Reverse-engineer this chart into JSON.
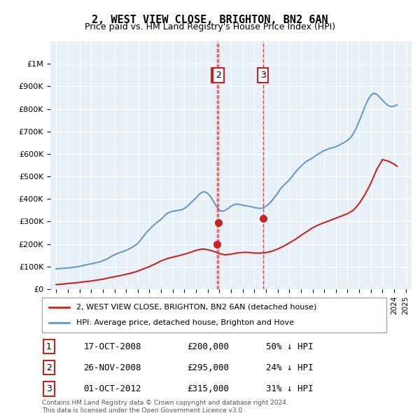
{
  "title": "2, WEST VIEW CLOSE, BRIGHTON, BN2 6AN",
  "subtitle": "Price paid vs. HM Land Registry's House Price Index (HPI)",
  "hpi_years": [
    1995.0,
    1995.25,
    1995.5,
    1995.75,
    1996.0,
    1996.25,
    1996.5,
    1996.75,
    1997.0,
    1997.25,
    1997.5,
    1997.75,
    1998.0,
    1998.25,
    1998.5,
    1998.75,
    1999.0,
    1999.25,
    1999.5,
    1999.75,
    2000.0,
    2000.25,
    2000.5,
    2000.75,
    2001.0,
    2001.25,
    2001.5,
    2001.75,
    2002.0,
    2002.25,
    2002.5,
    2002.75,
    2003.0,
    2003.25,
    2003.5,
    2003.75,
    2004.0,
    2004.25,
    2004.5,
    2004.75,
    2005.0,
    2005.25,
    2005.5,
    2005.75,
    2006.0,
    2006.25,
    2006.5,
    2006.75,
    2007.0,
    2007.25,
    2007.5,
    2007.75,
    2008.0,
    2008.25,
    2008.5,
    2008.75,
    2009.0,
    2009.25,
    2009.5,
    2009.75,
    2010.0,
    2010.25,
    2010.5,
    2010.75,
    2011.0,
    2011.25,
    2011.5,
    2011.75,
    2012.0,
    2012.25,
    2012.5,
    2012.75,
    2013.0,
    2013.25,
    2013.5,
    2013.75,
    2014.0,
    2014.25,
    2014.5,
    2014.75,
    2015.0,
    2015.25,
    2015.5,
    2015.75,
    2016.0,
    2016.25,
    2016.5,
    2016.75,
    2017.0,
    2017.25,
    2017.5,
    2017.75,
    2018.0,
    2018.25,
    2018.5,
    2018.75,
    2019.0,
    2019.25,
    2019.5,
    2019.75,
    2020.0,
    2020.25,
    2020.5,
    2020.75,
    2021.0,
    2021.25,
    2021.5,
    2021.75,
    2022.0,
    2022.25,
    2022.5,
    2022.75,
    2023.0,
    2023.25,
    2023.5,
    2023.75,
    2024.0,
    2024.25
  ],
  "hpi_values": [
    90000,
    91000,
    92000,
    93000,
    94000,
    95000,
    97000,
    99000,
    101000,
    104000,
    107000,
    110000,
    112000,
    115000,
    118000,
    121000,
    126000,
    131000,
    138000,
    146000,
    152000,
    158000,
    163000,
    167000,
    172000,
    178000,
    185000,
    193000,
    203000,
    218000,
    235000,
    252000,
    265000,
    278000,
    290000,
    300000,
    310000,
    323000,
    335000,
    342000,
    345000,
    348000,
    350000,
    352000,
    358000,
    368000,
    380000,
    393000,
    405000,
    420000,
    430000,
    432000,
    425000,
    410000,
    390000,
    368000,
    350000,
    345000,
    350000,
    358000,
    368000,
    375000,
    378000,
    376000,
    372000,
    370000,
    368000,
    366000,
    362000,
    360000,
    358000,
    360000,
    368000,
    378000,
    392000,
    408000,
    425000,
    445000,
    460000,
    472000,
    485000,
    500000,
    518000,
    532000,
    545000,
    558000,
    568000,
    575000,
    582000,
    592000,
    600000,
    608000,
    615000,
    620000,
    625000,
    628000,
    632000,
    638000,
    645000,
    652000,
    660000,
    672000,
    690000,
    715000,
    745000,
    778000,
    810000,
    840000,
    860000,
    870000,
    865000,
    852000,
    838000,
    825000,
    815000,
    810000,
    812000,
    818000
  ],
  "price_years": [
    1995.0,
    1995.5,
    1996.0,
    1996.5,
    1997.0,
    1997.5,
    1998.0,
    1998.5,
    1999.0,
    1999.5,
    2000.0,
    2000.5,
    2001.0,
    2001.5,
    2002.0,
    2002.5,
    2003.0,
    2003.5,
    2004.0,
    2004.5,
    2005.0,
    2005.5,
    2006.0,
    2006.5,
    2007.0,
    2007.5,
    2008.0,
    2008.5,
    2009.0,
    2009.5,
    2010.0,
    2010.5,
    2011.0,
    2011.5,
    2012.0,
    2012.5,
    2013.0,
    2013.5,
    2014.0,
    2014.5,
    2015.0,
    2015.5,
    2016.0,
    2016.5,
    2017.0,
    2017.5,
    2018.0,
    2018.5,
    2019.0,
    2019.5,
    2020.0,
    2020.5,
    2021.0,
    2021.5,
    2022.0,
    2022.5,
    2023.0,
    2023.5,
    2024.0,
    2024.25
  ],
  "price_values": [
    20000,
    22000,
    25000,
    27000,
    30000,
    33000,
    36000,
    40000,
    44000,
    50000,
    55000,
    60000,
    66000,
    72000,
    80000,
    90000,
    100000,
    112000,
    125000,
    135000,
    142000,
    148000,
    155000,
    163000,
    172000,
    178000,
    175000,
    168000,
    158000,
    152000,
    155000,
    160000,
    163000,
    163000,
    160000,
    160000,
    162000,
    168000,
    178000,
    190000,
    205000,
    220000,
    238000,
    255000,
    272000,
    285000,
    295000,
    305000,
    315000,
    325000,
    335000,
    350000,
    380000,
    420000,
    470000,
    530000,
    575000,
    568000,
    555000,
    545000
  ],
  "transactions": [
    {
      "label": "1",
      "year": 2008.79,
      "price": 200000,
      "date": "17-OCT-2008",
      "pct": "50%",
      "direction": "↓"
    },
    {
      "label": "2",
      "year": 2008.91,
      "price": 295000,
      "date": "26-NOV-2008",
      "pct": "24%",
      "direction": "↓"
    },
    {
      "label": "3",
      "year": 2012.75,
      "price": 315000,
      "date": "01-OCT-2012",
      "pct": "31%",
      "direction": "↓"
    }
  ],
  "transaction_line_x2": 2008.91,
  "transaction_line_x3": 2012.75,
  "xlim": [
    1994.5,
    2025.5
  ],
  "ylim": [
    0,
    1100000
  ],
  "yticks": [
    0,
    100000,
    200000,
    300000,
    400000,
    500000,
    600000,
    700000,
    800000,
    900000,
    1000000
  ],
  "ytick_labels": [
    "£0",
    "£100K",
    "£200K",
    "£300K",
    "£400K",
    "£500K",
    "£600K",
    "£700K",
    "£800K",
    "£900K",
    "£1M"
  ],
  "xticks": [
    1995,
    1996,
    1997,
    1998,
    1999,
    2000,
    2001,
    2002,
    2003,
    2004,
    2005,
    2006,
    2007,
    2008,
    2009,
    2010,
    2011,
    2012,
    2013,
    2014,
    2015,
    2016,
    2017,
    2018,
    2019,
    2020,
    2021,
    2022,
    2023,
    2024,
    2025
  ],
  "hpi_color": "#6699cc",
  "price_color": "#cc2222",
  "bg_color": "#e8f0f8",
  "grid_color": "#ffffff",
  "legend_label_price": "2, WEST VIEW CLOSE, BRIGHTON, BN2 6AN (detached house)",
  "legend_label_hpi": "HPI: Average price, detached house, Brighton and Hove",
  "footer": "Contains HM Land Registry data © Crown copyright and database right 2024.\nThis data is licensed under the Open Government Licence v3.0.",
  "marker_box_color": "#cc2222"
}
